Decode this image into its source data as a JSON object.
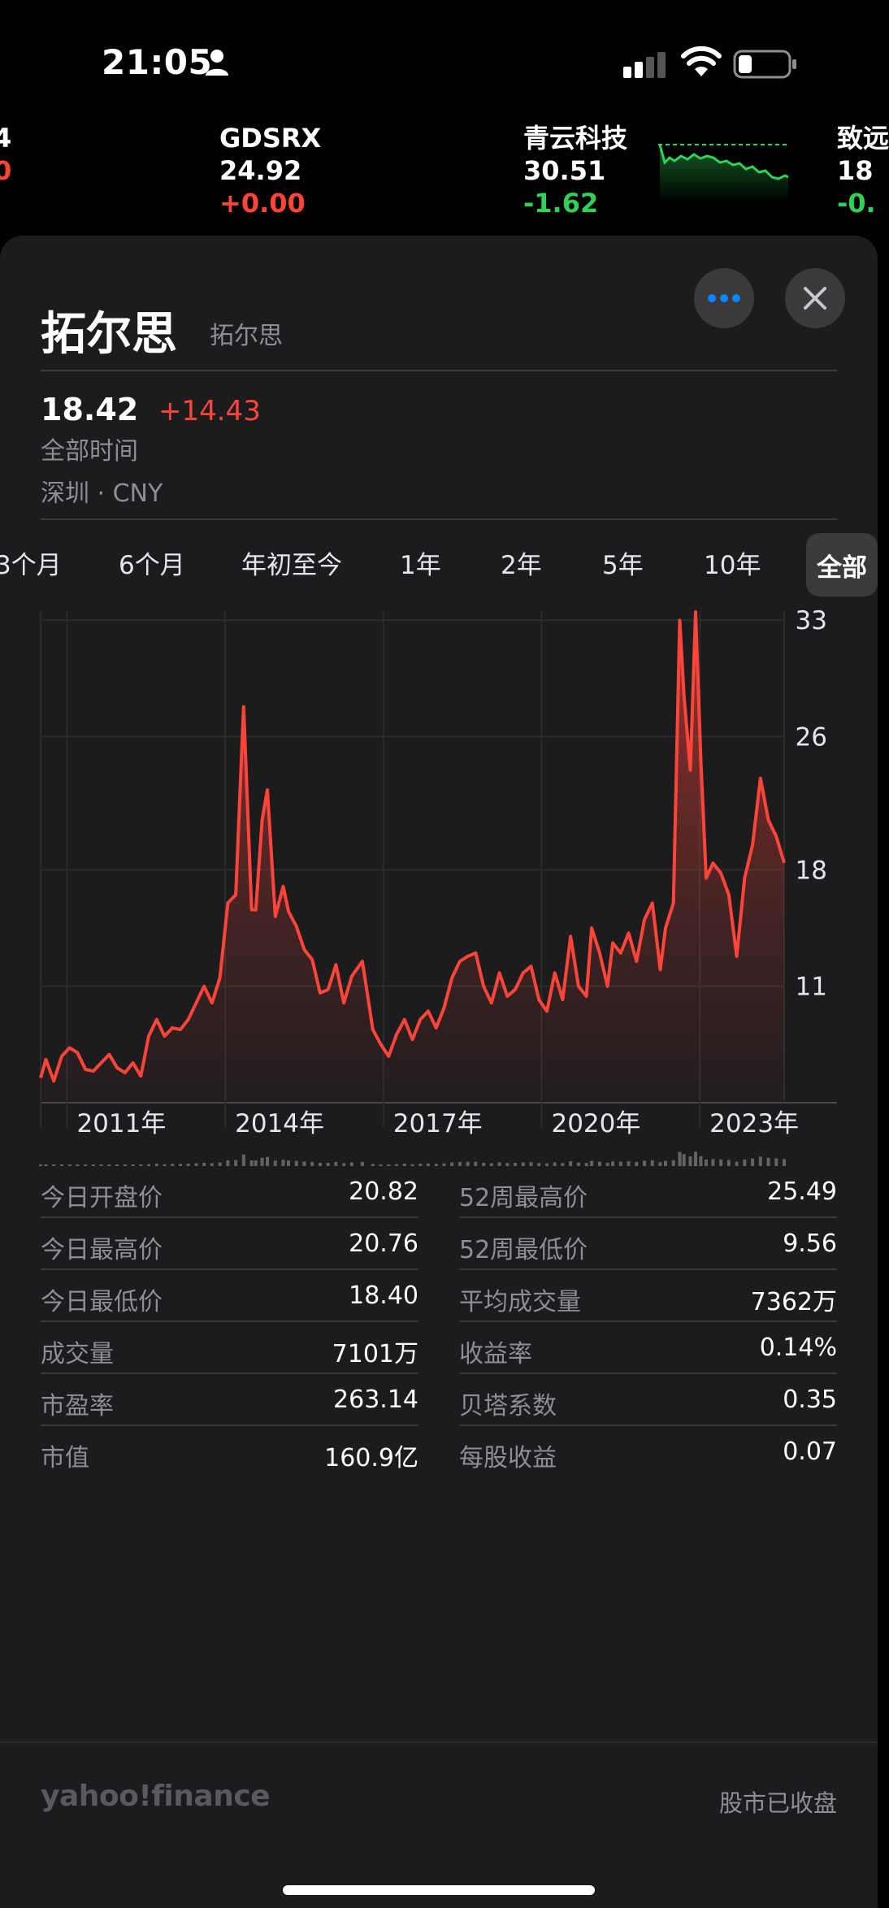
{
  "status_bar": {
    "time": "21:05"
  },
  "tickers": [
    {
      "symbol": "",
      "price": "4",
      "change": "0",
      "direction": "down"
    },
    {
      "symbol": "GDSRX",
      "price": "24.92",
      "change": "+0.00",
      "direction": "up"
    },
    {
      "symbol": "青云科技",
      "price": "30.51",
      "change": "-1.62",
      "direction": "down"
    },
    {
      "symbol": "致远",
      "price": "18",
      "change": "-0.",
      "direction": "down"
    }
  ],
  "stock": {
    "name": "拓尔思",
    "subtitle": "拓尔思",
    "price": "18.42",
    "change": "+14.43",
    "range_label": "全部时间",
    "exchange": "深圳 · CNY"
  },
  "tabs": [
    "3个月",
    "6个月",
    "年初至今",
    "1年",
    "2年",
    "5年",
    "10年",
    "全部"
  ],
  "active_tab": "全部",
  "chart_data": {
    "type": "area",
    "x_tick_labels": [
      "2011年",
      "2014年",
      "2017年",
      "2020年",
      "2023年"
    ],
    "y_tick_labels": [
      "33",
      "26",
      "18",
      "11"
    ],
    "ylim": [
      4,
      33.5
    ],
    "x_range": [
      2010.0,
      2024.1
    ],
    "x": [
      2010.0,
      2010.1,
      2010.25,
      2010.4,
      2010.55,
      2010.7,
      2010.85,
      2011.0,
      2011.15,
      2011.3,
      2011.45,
      2011.6,
      2011.75,
      2011.9,
      2012.05,
      2012.2,
      2012.35,
      2012.5,
      2012.65,
      2012.8,
      2012.95,
      2013.1,
      2013.25,
      2013.4,
      2013.55,
      2013.7,
      2013.85,
      2014.0,
      2014.08,
      2014.2,
      2014.3,
      2014.45,
      2014.6,
      2014.7,
      2014.85,
      2015.0,
      2015.15,
      2015.3,
      2015.45,
      2015.6,
      2015.75,
      2015.9,
      2016.1,
      2016.3,
      2016.45,
      2016.6,
      2016.75,
      2016.9,
      2017.05,
      2017.2,
      2017.35,
      2017.5,
      2017.65,
      2017.8,
      2017.95,
      2018.1,
      2018.25,
      2018.4,
      2018.55,
      2018.7,
      2018.85,
      2019.0,
      2019.15,
      2019.3,
      2019.45,
      2019.6,
      2019.75,
      2019.9,
      2020.05,
      2020.2,
      2020.35,
      2020.45,
      2020.6,
      2020.75,
      2020.85,
      2021.0,
      2021.15,
      2021.3,
      2021.45,
      2021.6,
      2021.75,
      2021.85,
      2022.0,
      2022.12,
      2022.2,
      2022.32,
      2022.42,
      2022.52,
      2022.62,
      2022.75,
      2022.9,
      2023.05,
      2023.2,
      2023.35,
      2023.5,
      2023.65,
      2023.8,
      2023.95,
      2024.1
    ],
    "values": [
      5.5,
      6.6,
      5.3,
      6.8,
      7.3,
      7.0,
      6.0,
      5.9,
      6.4,
      6.9,
      6.1,
      5.8,
      6.4,
      5.6,
      8.0,
      9.0,
      8.0,
      8.5,
      8.4,
      9.0,
      10.0,
      11.0,
      10.0,
      11.5,
      16.0,
      16.5,
      27.8,
      15.6,
      15.6,
      21.0,
      22.8,
      15.2,
      17.0,
      15.5,
      14.6,
      13.2,
      12.6,
      10.6,
      10.8,
      12.3,
      10.0,
      11.6,
      12.5,
      8.4,
      7.5,
      6.8,
      8.1,
      9.0,
      7.8,
      9.0,
      9.5,
      8.5,
      9.7,
      11.5,
      12.5,
      12.8,
      13.0,
      11.0,
      10.0,
      11.8,
      10.4,
      10.8,
      11.8,
      12.2,
      10.2,
      9.5,
      11.8,
      10.2,
      14.0,
      11.0,
      10.4,
      14.5,
      13.0,
      11.0,
      13.6,
      13.0,
      14.2,
      12.5,
      15.0,
      16.0,
      12.0,
      14.5,
      16.0,
      33.0,
      28.5,
      24.0,
      33.5,
      24.5,
      17.5,
      18.4,
      17.8,
      16.5,
      12.8,
      17.5,
      19.5,
      23.5,
      21.0,
      20.0,
      18.42
    ]
  },
  "stats_left": [
    {
      "label": "今日开盘价",
      "value": "20.82"
    },
    {
      "label": "今日最高价",
      "value": "20.76"
    },
    {
      "label": "今日最低价",
      "value": "18.40"
    },
    {
      "label": "成交量",
      "value": "7101万"
    },
    {
      "label": "市盈率",
      "value": "263.14"
    },
    {
      "label": "市值",
      "value": "160.9亿"
    }
  ],
  "stats_right": [
    {
      "label": "52周最高价",
      "value": "25.49"
    },
    {
      "label": "52周最低价",
      "value": "9.56"
    },
    {
      "label": "平均成交量",
      "value": "7362万"
    },
    {
      "label": "收益率",
      "value": "0.14%"
    },
    {
      "label": "贝塔系数",
      "value": "0.35"
    },
    {
      "label": "每股收益",
      "value": "0.07"
    }
  ],
  "footer": {
    "brand": "yahoo!finance",
    "market_status": "股市已收盘"
  },
  "colors": {
    "up": "#30d158",
    "down": "#ff453a",
    "accent_blue": "#0a84ff"
  }
}
